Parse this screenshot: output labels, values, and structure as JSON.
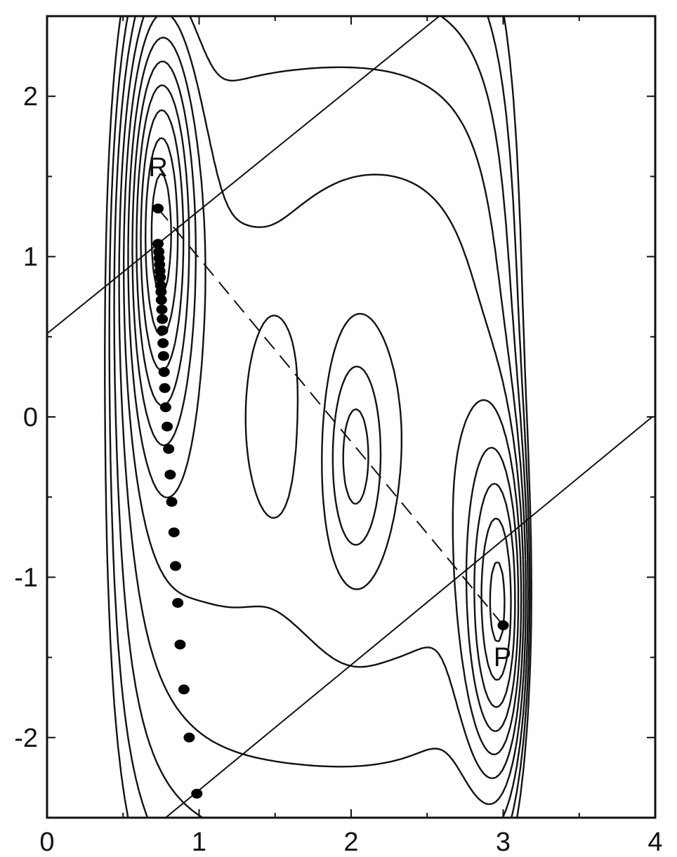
{
  "chart_data": {
    "type": "contour",
    "title": "",
    "xlabel": "",
    "ylabel": "",
    "xlim": [
      0,
      4
    ],
    "ylim": [
      -2.5,
      2.5
    ],
    "xticks": [
      0,
      1,
      2,
      3,
      4
    ],
    "yticks": [
      -2,
      -1,
      0,
      1,
      2
    ],
    "x_tick_labels": [
      "0",
      "1",
      "2",
      "3",
      "4"
    ],
    "y_tick_labels": [
      "-2",
      "-1",
      "0",
      "1",
      "2"
    ],
    "grid": false,
    "legend": "none",
    "points": {
      "reactant": {
        "label": "R",
        "x": 0.73,
        "y": 1.3
      },
      "product": {
        "label": "P",
        "x": 3.0,
        "y": -1.3
      }
    },
    "path_points": [
      {
        "x": 0.73,
        "y": 1.08
      },
      {
        "x": 0.735,
        "y": 1.03
      },
      {
        "x": 0.737,
        "y": 0.99
      },
      {
        "x": 0.74,
        "y": 0.95
      },
      {
        "x": 0.742,
        "y": 0.91
      },
      {
        "x": 0.745,
        "y": 0.87
      },
      {
        "x": 0.747,
        "y": 0.82
      },
      {
        "x": 0.75,
        "y": 0.78
      },
      {
        "x": 0.752,
        "y": 0.73
      },
      {
        "x": 0.755,
        "y": 0.67
      },
      {
        "x": 0.758,
        "y": 0.61
      },
      {
        "x": 0.76,
        "y": 0.54
      },
      {
        "x": 0.763,
        "y": 0.46
      },
      {
        "x": 0.766,
        "y": 0.38
      },
      {
        "x": 0.77,
        "y": 0.28
      },
      {
        "x": 0.774,
        "y": 0.18
      },
      {
        "x": 0.78,
        "y": 0.06
      },
      {
        "x": 0.79,
        "y": -0.06
      },
      {
        "x": 0.8,
        "y": -0.2
      },
      {
        "x": 0.81,
        "y": -0.36
      },
      {
        "x": 0.82,
        "y": -0.53
      },
      {
        "x": 0.835,
        "y": -0.72
      },
      {
        "x": 0.845,
        "y": -0.93
      },
      {
        "x": 0.86,
        "y": -1.16
      },
      {
        "x": 0.875,
        "y": -1.42
      },
      {
        "x": 0.9,
        "y": -1.7
      },
      {
        "x": 0.935,
        "y": -2.0
      },
      {
        "x": 0.985,
        "y": -2.35
      }
    ],
    "dashed_line": {
      "from": [
        0.73,
        1.3
      ],
      "to": [
        3.0,
        -1.3
      ]
    },
    "solid_lines": [
      {
        "from": [
          0.0,
          0.52
        ],
        "to": [
          2.58,
          2.5
        ]
      },
      {
        "from": [
          0.78,
          -2.5
        ],
        "to": [
          3.98,
          0.0
        ]
      }
    ],
    "contour_levels": 11
  }
}
